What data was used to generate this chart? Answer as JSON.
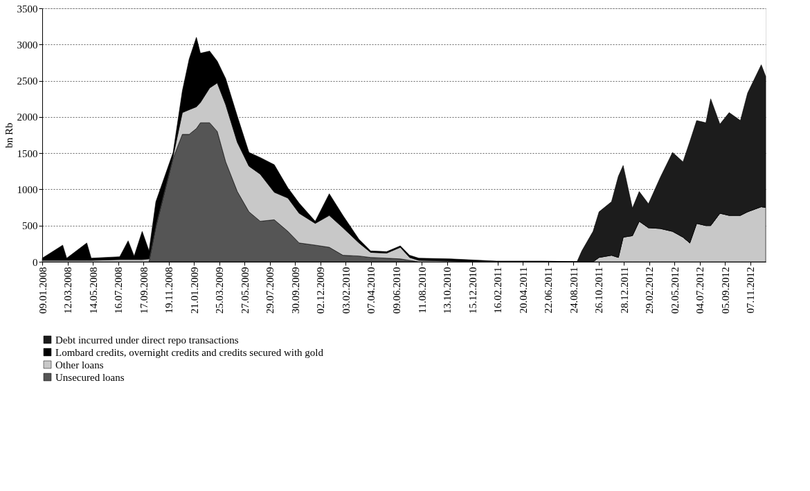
{
  "chart_data": {
    "type": "area",
    "stacked": true,
    "ylabel": "bn Rb",
    "legend": "bottom",
    "grid": "y",
    "x": [
      "2008-01-09",
      "2008-02-29",
      "2008-03-10",
      "2008-04-29",
      "2008-05-10",
      "2008-07-20",
      "2008-08-10",
      "2008-08-25",
      "2008-09-14",
      "2008-10-01",
      "2008-10-18",
      "2008-11-30",
      "2008-12-23",
      "2009-01-09",
      "2009-01-27",
      "2009-02-06",
      "2009-03-01",
      "2009-03-20",
      "2009-04-10",
      "2009-05-09",
      "2009-06-07",
      "2009-07-05",
      "2009-08-09",
      "2009-09-12",
      "2009-10-10",
      "2009-11-19",
      "2009-12-24",
      "2010-01-27",
      "2010-03-08",
      "2010-04-06",
      "2010-05-16",
      "2010-06-19",
      "2010-07-12",
      "2010-08-04",
      "2010-10-22",
      "2011-02-14",
      "2011-06-08",
      "2011-09-02",
      "2011-09-14",
      "2011-10-12",
      "2011-10-27",
      "2011-11-27",
      "2011-12-14",
      "2011-12-26",
      "2012-01-18",
      "2012-02-04",
      "2012-02-27",
      "2012-03-27",
      "2012-04-27",
      "2012-05-23",
      "2012-06-09",
      "2012-06-26",
      "2012-07-19",
      "2012-07-31",
      "2012-08-23",
      "2012-09-15",
      "2012-10-13",
      "2012-10-31",
      "2012-12-04",
      "2012-12-15"
    ],
    "series": [
      {
        "name": "Unsecured loans",
        "color": "#555555",
        "values": [
          0,
          0,
          0,
          0,
          0,
          0,
          0,
          0,
          0,
          0,
          480,
          1430,
          1760,
          1760,
          1840,
          1920,
          1920,
          1800,
          1380,
          970,
          690,
          560,
          580,
          420,
          260,
          230,
          200,
          90,
          80,
          60,
          50,
          40,
          20,
          0,
          0,
          0,
          0,
          0,
          0,
          0,
          0,
          0,
          0,
          0,
          0,
          0,
          0,
          0,
          0,
          0,
          0,
          0,
          0,
          0,
          0,
          0,
          0,
          0,
          0,
          0
        ]
      },
      {
        "name": "Other loans",
        "color": "#c8c8c8",
        "values": [
          20,
          20,
          20,
          20,
          20,
          30,
          30,
          30,
          30,
          40,
          30,
          30,
          300,
          340,
          300,
          280,
          480,
          670,
          790,
          680,
          630,
          650,
          380,
          460,
          410,
          300,
          440,
          380,
          180,
          70,
          70,
          160,
          40,
          20,
          10,
          0,
          0,
          0,
          0,
          0,
          60,
          90,
          60,
          340,
          360,
          560,
          470,
          460,
          420,
          340,
          260,
          530,
          500,
          500,
          670,
          640,
          640,
          690,
          760,
          750
        ]
      },
      {
        "name": "Lombard credits, overnight credits and credits secured with gold",
        "color": "#000000",
        "values": [
          30,
          210,
          30,
          240,
          30,
          40,
          260,
          50,
          390,
          110,
          320,
          50,
          300,
          700,
          960,
          680,
          510,
          300,
          360,
          360,
          190,
          230,
          380,
          140,
          140,
          30,
          300,
          170,
          50,
          20,
          20,
          20,
          30,
          30,
          30,
          10,
          10,
          0,
          0,
          0,
          0,
          0,
          0,
          0,
          0,
          0,
          0,
          0,
          0,
          0,
          0,
          0,
          0,
          0,
          0,
          0,
          0,
          0,
          0,
          0
        ]
      },
      {
        "name": "Debt incurred under direct repo transactions",
        "color": "#1c1c1c",
        "values": [
          null,
          null,
          null,
          null,
          null,
          null,
          null,
          null,
          null,
          null,
          null,
          null,
          null,
          null,
          null,
          null,
          null,
          null,
          null,
          null,
          null,
          null,
          null,
          null,
          null,
          null,
          null,
          null,
          null,
          null,
          null,
          null,
          null,
          null,
          null,
          null,
          null,
          0,
          150,
          420,
          630,
          740,
          1120,
          990,
          380,
          410,
          330,
          700,
          1090,
          1040,
          1400,
          1420,
          1420,
          1750,
          1230,
          1420,
          1310,
          1640,
          1960,
          1810
        ]
      }
    ],
    "ylim": [
      0,
      3500
    ],
    "yticks": [
      0,
      500,
      1000,
      1500,
      2000,
      2500,
      3000,
      3500
    ],
    "xlim": [
      "2008-01-09",
      "2012-12-15"
    ],
    "xticks": [
      {
        "value": "2008-01-09",
        "label": "09.01.2008"
      },
      {
        "value": "2008-03-12",
        "label": "12.03.2008"
      },
      {
        "value": "2008-05-14",
        "label": "14.05.2008"
      },
      {
        "value": "2008-07-16",
        "label": "16.07.2008"
      },
      {
        "value": "2008-09-17",
        "label": "17.09.2008"
      },
      {
        "value": "2008-11-19",
        "label": "19.11.2008"
      },
      {
        "value": "2009-01-21",
        "label": "21.01.2009"
      },
      {
        "value": "2009-03-25",
        "label": "25.03.2009"
      },
      {
        "value": "2009-05-27",
        "label": "27.05.2009"
      },
      {
        "value": "2009-07-29",
        "label": "29.07.2009"
      },
      {
        "value": "2009-09-30",
        "label": "30.09.2009"
      },
      {
        "value": "2009-12-02",
        "label": "02.12.2009"
      },
      {
        "value": "2010-02-03",
        "label": "03.02.2010"
      },
      {
        "value": "2010-04-07",
        "label": "07.04.2010"
      },
      {
        "value": "2010-06-09",
        "label": "09.06.2010"
      },
      {
        "value": "2010-08-11",
        "label": "11.08.2010"
      },
      {
        "value": "2010-10-13",
        "label": "13.10.2010"
      },
      {
        "value": "2010-12-15",
        "label": "15.12.2010"
      },
      {
        "value": "2011-02-16",
        "label": "16.02.2011"
      },
      {
        "value": "2011-04-20",
        "label": "20.04.2011"
      },
      {
        "value": "2011-06-22",
        "label": "22.06.2011"
      },
      {
        "value": "2011-08-24",
        "label": "24.08.2011"
      },
      {
        "value": "2011-10-26",
        "label": "26.10.2011"
      },
      {
        "value": "2011-12-28",
        "label": "28.12.2011"
      },
      {
        "value": "2012-02-29",
        "label": "29.02.2012"
      },
      {
        "value": "2012-05-02",
        "label": "02.05.2012"
      },
      {
        "value": "2012-07-04",
        "label": "04.07.2012"
      },
      {
        "value": "2012-09-05",
        "label": "05.09.2012"
      },
      {
        "value": "2012-11-07",
        "label": "07.11.2012"
      }
    ]
  }
}
